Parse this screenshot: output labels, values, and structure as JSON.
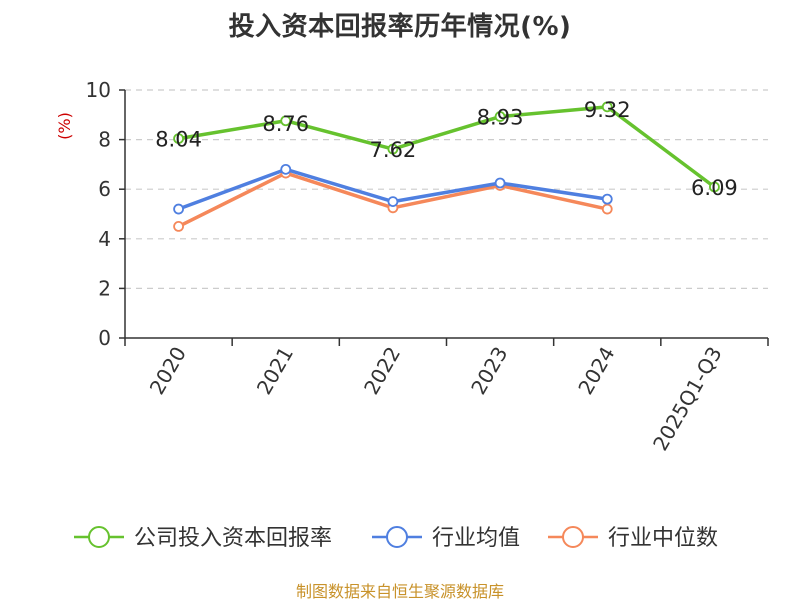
{
  "chart_data": {
    "type": "line",
    "title": "投入资本回报率历年情况(%)",
    "ylabel": "(%)",
    "xlabel": "",
    "categories": [
      "2020",
      "2021",
      "2022",
      "2023",
      "2024",
      "2025Q1-Q3"
    ],
    "ylim": [
      0,
      10
    ],
    "yticks": [
      0,
      2,
      4,
      6,
      8,
      10
    ],
    "grid": true,
    "legend_position": "bottom",
    "series": [
      {
        "name": "公司投入资本回报率",
        "color": "#66c22e",
        "values": [
          8.04,
          8.76,
          7.62,
          8.93,
          9.32,
          6.09
        ],
        "data_labels": [
          "8.04",
          "8.76",
          "7.62",
          "8.93",
          "9.32",
          "6.09"
        ]
      },
      {
        "name": "行业均值",
        "color": "#4f7fe0",
        "values": [
          5.2,
          6.8,
          5.5,
          6.25,
          5.6,
          null
        ]
      },
      {
        "name": "行业中位数",
        "color": "#f5885a",
        "values": [
          4.5,
          6.65,
          5.25,
          6.15,
          5.2,
          null
        ]
      }
    ]
  },
  "source_note": "制图数据来自恒生聚源数据库",
  "colors": {
    "axis": "#333333",
    "grid": "#cccccc",
    "ylabel": "#cc0000"
  }
}
